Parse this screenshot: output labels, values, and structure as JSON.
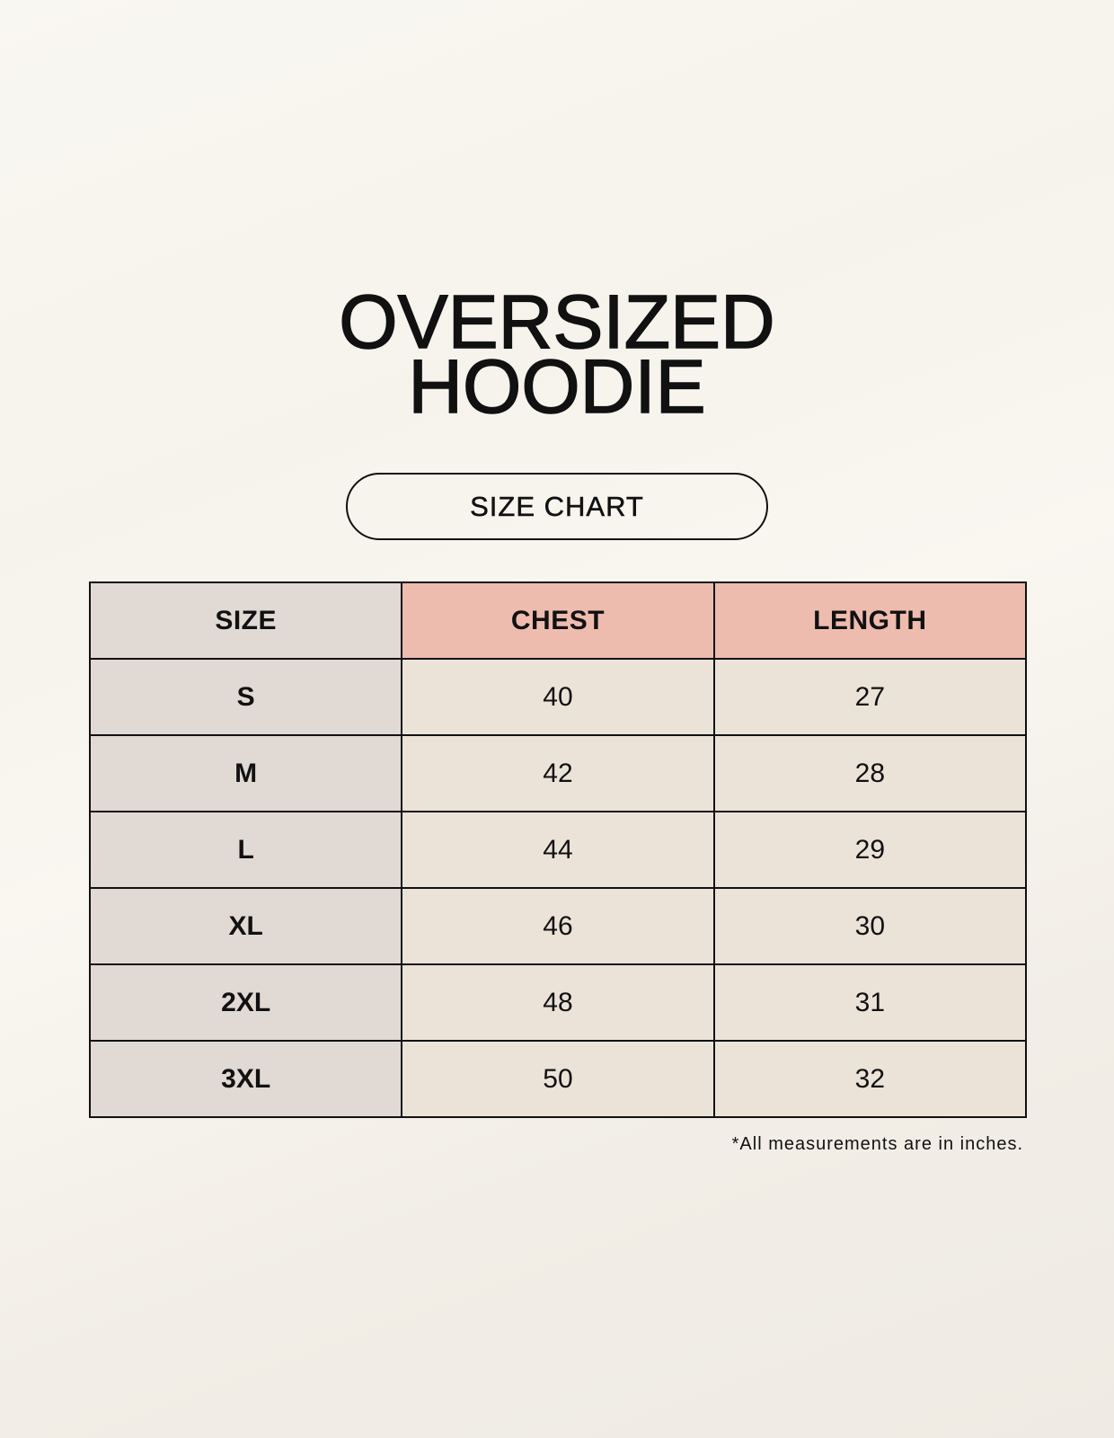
{
  "title_lines": [
    "OVERSIZED",
    "HOODIE"
  ],
  "badge": "SIZE CHART",
  "table": {
    "headers": [
      "SIZE",
      "CHEST",
      "LENGTH"
    ],
    "rows": [
      [
        "S",
        "40",
        "27"
      ],
      [
        "M",
        "42",
        "28"
      ],
      [
        "L",
        "44",
        "29"
      ],
      [
        "XL",
        "46",
        "30"
      ],
      [
        "2XL",
        "48",
        "31"
      ],
      [
        "3XL",
        "50",
        "32"
      ]
    ]
  },
  "footnote": "*All measurements are in inches.",
  "colors": {
    "background": "#f8f6f0",
    "size_column": "#e1d9d3",
    "header_accent": "#eebcae",
    "cell": "#ebe3d8"
  }
}
